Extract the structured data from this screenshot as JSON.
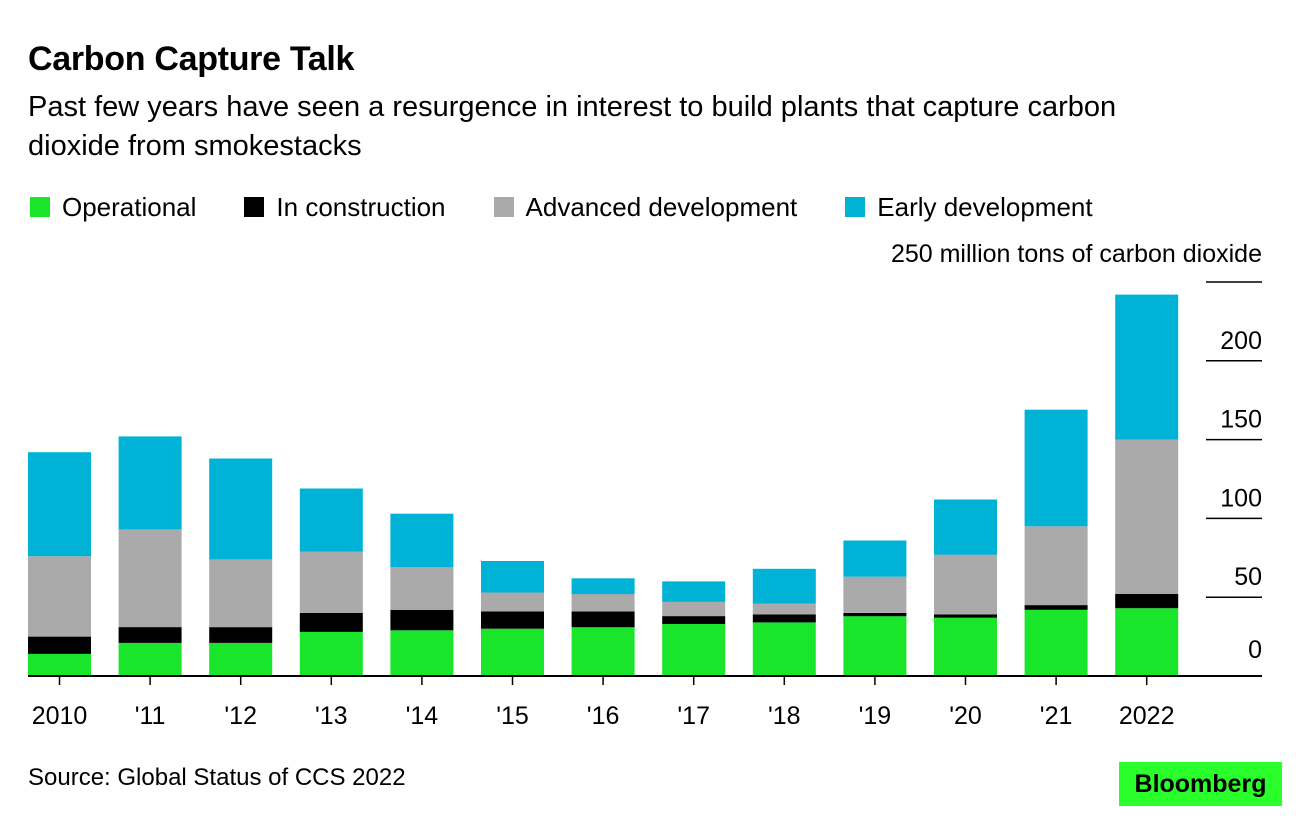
{
  "title": "Carbon Capture Talk",
  "subtitle": "Past few years have seen a resurgence in interest to build plants that capture carbon dioxide from smokestacks",
  "source": "Source: Global Status of CCS 2022",
  "brand": "Bloomberg",
  "colors": {
    "operational": "#19e52a",
    "construction": "#000000",
    "advanced": "#aaaaaa",
    "early": "#00b2d6",
    "brand_bg": "#2bff2b"
  },
  "chart_data": {
    "type": "bar",
    "stacked": true,
    "unit_label": "250 million tons of carbon dioxide",
    "categories": [
      "2010",
      "'11",
      "'12",
      "'13",
      "'14",
      "'15",
      "'16",
      "'17",
      "'18",
      "'19",
      "'20",
      "'21",
      "2022"
    ],
    "series": [
      {
        "name": "Operational",
        "color": "#19e52a",
        "values": [
          14,
          21,
          21,
          28,
          29,
          30,
          31,
          33,
          34,
          38,
          37,
          42,
          43
        ]
      },
      {
        "name": "In construction",
        "color": "#000000",
        "values": [
          11,
          10,
          10,
          12,
          13,
          11,
          10,
          5,
          5,
          2,
          2,
          3,
          9
        ]
      },
      {
        "name": "Advanced development",
        "color": "#aaaaaa",
        "values": [
          51,
          62,
          43,
          39,
          27,
          12,
          11,
          9,
          7,
          23,
          38,
          50,
          98
        ]
      },
      {
        "name": "Early development",
        "color": "#00b2d6",
        "values": [
          66,
          59,
          64,
          40,
          34,
          20,
          10,
          13,
          22,
          23,
          35,
          74,
          92
        ]
      }
    ],
    "yticks": [
      0,
      50,
      100,
      150,
      200,
      250
    ],
    "ylim": [
      0,
      250
    ],
    "legend_position": "top-left",
    "grid": false
  }
}
